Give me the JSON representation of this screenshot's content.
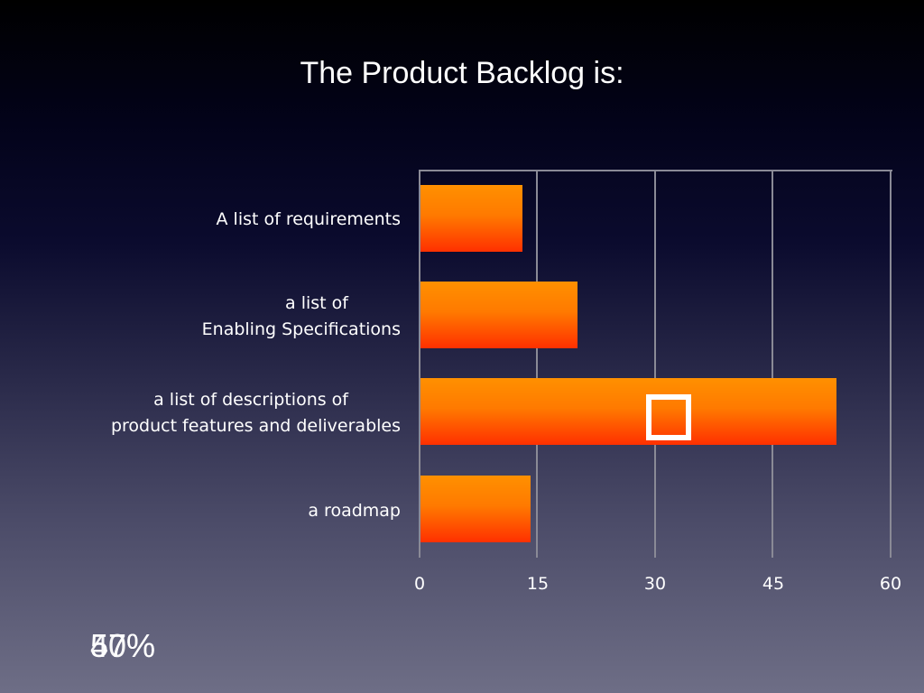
{
  "slide": {
    "title": "The Product Backlog is:",
    "percent_labels": [
      "57%",
      "40%"
    ]
  },
  "colors": {
    "bar_top": "#ff9000",
    "bar_bottom": "#ff3000",
    "grid": "#8a8a96",
    "text": "#ffffff",
    "background_top": "#000000",
    "background_bottom": "#6e6e86"
  },
  "chart_data": {
    "type": "bar",
    "orientation": "horizontal",
    "title": "The Product Backlog is:",
    "categories": [
      "A list of requirements",
      "a list of Enabling Specifications",
      "a list of descriptions of product features and deliverables",
      "a roadmap"
    ],
    "category_label_lines": [
      [
        "A list of requirements"
      ],
      [
        "a list of",
        "Enabling Specifications"
      ],
      [
        "a list of descriptions of",
        "product features and deliverables"
      ],
      [
        "a roadmap"
      ]
    ],
    "values": [
      13,
      20,
      53,
      14
    ],
    "xlabel": "",
    "ylabel": "",
    "xlim": [
      0,
      60
    ],
    "xticks": [
      "0",
      "15",
      "30",
      "45",
      "60"
    ],
    "grid": true,
    "legend": null,
    "annotations": [
      "white square marker on 'a list of descriptions of product features and deliverables' bar (correct answer)",
      "57%",
      "40%"
    ]
  }
}
